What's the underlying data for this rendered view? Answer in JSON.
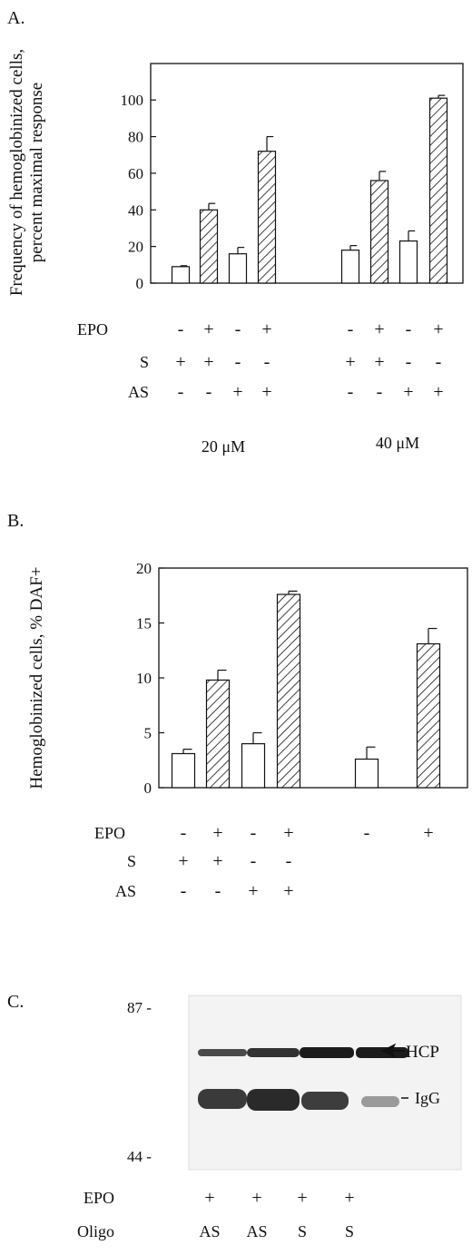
{
  "panels": [
    {
      "label": "A.",
      "ylabel_line1": "Frequency of hemoglobinized cells,",
      "ylabel_line2": "percent maximal response",
      "condition_labels": {
        "epo": "EPO",
        "s": "S",
        "as": "AS"
      },
      "group_labels": [
        "20 μM",
        "40 μM"
      ]
    },
    {
      "label": "B.",
      "ylabel": "Hemoglobinized cells, % DAF+",
      "condition_labels": {
        "epo": "EPO",
        "s": "S",
        "as": "AS"
      }
    },
    {
      "label": "C.",
      "marker_87": "87 -",
      "marker_44": "44 -",
      "hcp_label": "HCP",
      "igg_label": "IgG",
      "row_labels": {
        "epo": "EPO",
        "oligo": "Oligo"
      },
      "epo_row": [
        "+",
        "+",
        "+",
        "+"
      ],
      "oligo_row": [
        "AS",
        "AS",
        "S",
        "S"
      ]
    }
  ],
  "chart_data": [
    {
      "type": "bar",
      "panel": "A.",
      "ylim": [
        0,
        110
      ],
      "yticks": [
        0,
        20,
        40,
        60,
        80,
        100
      ],
      "bars": [
        {
          "value": 9,
          "error": 0.5,
          "pattern": "open",
          "epo": "-",
          "s": "+",
          "as": "-"
        },
        {
          "value": 40,
          "error": 3.5,
          "pattern": "hatched",
          "epo": "+",
          "s": "+",
          "as": "-"
        },
        {
          "value": 16,
          "error": 3.5,
          "pattern": "open",
          "epo": "-",
          "s": "-",
          "as": "+"
        },
        {
          "value": 72,
          "error": 8,
          "pattern": "hatched",
          "epo": "+",
          "s": "-",
          "as": "+"
        },
        {
          "value": 18,
          "error": 2.5,
          "pattern": "open",
          "epo": "-",
          "s": "+",
          "as": "-"
        },
        {
          "value": 56,
          "error": 5,
          "pattern": "hatched",
          "epo": "+",
          "s": "+",
          "as": "-"
        },
        {
          "value": 23,
          "error": 5.5,
          "pattern": "open",
          "epo": "-",
          "s": "-",
          "as": "+"
        },
        {
          "value": 101,
          "error": 1.5,
          "pattern": "hatched",
          "epo": "+",
          "s": "-",
          "as": "+"
        }
      ]
    },
    {
      "type": "bar",
      "panel": "B.",
      "ylim": [
        0,
        20
      ],
      "yticks": [
        0,
        5,
        10,
        15,
        20
      ],
      "bars": [
        {
          "value": 3.1,
          "error": 0.4,
          "pattern": "open",
          "epo": "-",
          "s": "+",
          "as": "-"
        },
        {
          "value": 9.8,
          "error": 0.9,
          "pattern": "hatched",
          "epo": "+",
          "s": "+",
          "as": "-"
        },
        {
          "value": 4.0,
          "error": 1.0,
          "pattern": "open",
          "epo": "-",
          "s": "-",
          "as": "+"
        },
        {
          "value": 17.6,
          "error": 0.3,
          "pattern": "hatched",
          "epo": "+",
          "s": "-",
          "as": "+"
        },
        {
          "value": 2.6,
          "error": 1.1,
          "pattern": "open",
          "epo": "-",
          "s": "",
          "as": ""
        },
        {
          "value": 13.1,
          "error": 1.4,
          "pattern": "hatched",
          "epo": "+",
          "s": "",
          "as": ""
        }
      ]
    }
  ]
}
